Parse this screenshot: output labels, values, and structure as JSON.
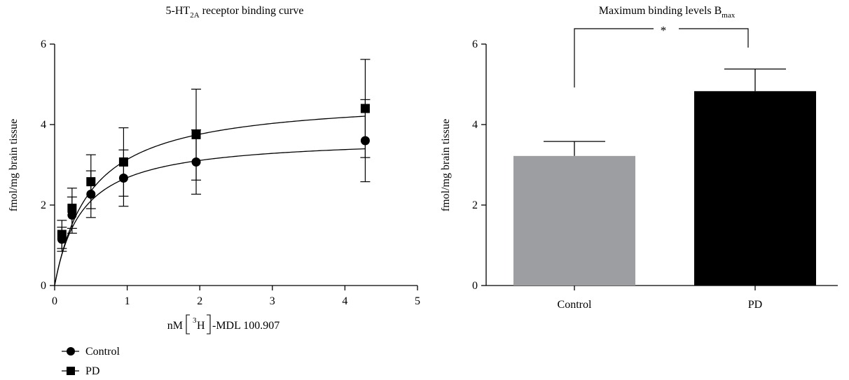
{
  "chart_data": [
    {
      "type": "scatter",
      "title": "5-HT",
      "title_sub": "2A",
      "title_rest": " receptor binding curve",
      "xlabel_prefix": "nM ",
      "xlabel_sup": "3",
      "xlabel_element": "H",
      "xlabel_suffix": "-MDL 100.907",
      "ylabel": "fmol/mg brain tissue",
      "xlim": [
        0,
        5
      ],
      "ylim": [
        0,
        6
      ],
      "xticks": [
        "0",
        "1",
        "2",
        "3",
        "4",
        "5"
      ],
      "yticks": [
        "0",
        "2",
        "4",
        "6"
      ],
      "grid": false,
      "legend_position": "bottom-left",
      "series": [
        {
          "name": "Control",
          "marker": "circle",
          "x": [
            0.1,
            0.24,
            0.5,
            0.95,
            1.95,
            4.28
          ],
          "y": [
            1.15,
            1.75,
            2.27,
            2.67,
            3.07,
            3.6
          ],
          "error": [
            0.3,
            0.45,
            0.58,
            0.7,
            0.8,
            1.02
          ],
          "fit_bmax": 3.7,
          "fit_kd": 0.38
        },
        {
          "name": "PD",
          "marker": "square",
          "x": [
            0.1,
            0.24,
            0.5,
            0.95,
            1.95,
            4.28
          ],
          "y": [
            1.27,
            1.92,
            2.58,
            3.07,
            3.75,
            4.4
          ],
          "error": [
            0.35,
            0.5,
            0.67,
            0.85,
            1.13,
            1.22
          ],
          "fit_bmax": 4.7,
          "fit_kd": 0.5
        }
      ]
    },
    {
      "type": "bar",
      "title": "Maximum binding levels B",
      "title_sub": "max",
      "ylabel": "fmol/mg brain tissue",
      "categories": [
        "Control",
        "PD"
      ],
      "values": [
        3.22,
        4.83
      ],
      "error": [
        0.36,
        0.55
      ],
      "colors": [
        "#9d9ea2",
        "#000000"
      ],
      "ylim": [
        0,
        6
      ],
      "yticks": [
        "0",
        "2",
        "4",
        "6"
      ],
      "significance": "*"
    }
  ]
}
